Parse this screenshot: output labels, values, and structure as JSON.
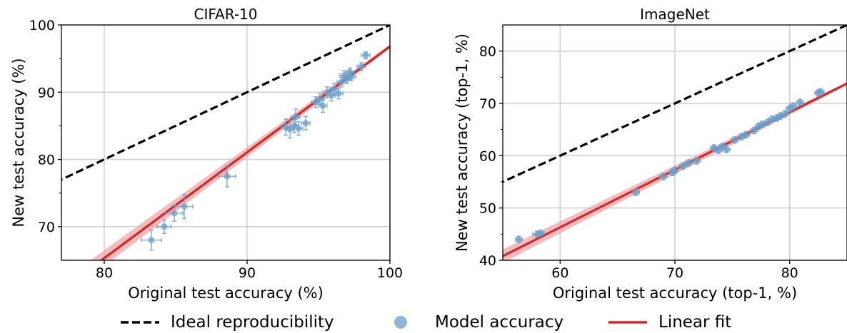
{
  "legend": {
    "ideal_label": "Ideal reproducibility",
    "model_label": "Model accuracy",
    "fit_label": "Linear fit"
  },
  "colors": {
    "ideal": "#000000",
    "points": "#6a9fcb",
    "fit": "#d62728",
    "fit_band": "#f0a0a0",
    "grid": "#d0d0d0"
  },
  "chart_data": [
    {
      "type": "scatter",
      "title": "CIFAR-10",
      "xlabel": "Original test accuracy (%)",
      "ylabel": "New test accuracy (%)",
      "xlim": [
        77,
        100
      ],
      "ylim": [
        65,
        100
      ],
      "xticks": [
        80,
        90,
        100
      ],
      "yticks": [
        70,
        80,
        90,
        100
      ],
      "grid": true,
      "legend_position": "bottom-center",
      "ideal_line": {
        "slope": 1,
        "intercept": 0
      },
      "linear_fit": {
        "x_range": [
          77,
          100
        ],
        "y_at_range": [
          60.6,
          96.8
        ]
      },
      "points": [
        {
          "x": 83.3,
          "y": 68.0,
          "xerr": 0.7,
          "yerr": 1.5
        },
        {
          "x": 84.2,
          "y": 70.0,
          "xerr": 0.5,
          "yerr": 1.0
        },
        {
          "x": 84.9,
          "y": 72.0,
          "xerr": 0.6,
          "yerr": 1.2
        },
        {
          "x": 85.6,
          "y": 73.0,
          "xerr": 0.6,
          "yerr": 1.8
        },
        {
          "x": 88.6,
          "y": 77.5,
          "xerr": 0.6,
          "yerr": 1.6
        },
        {
          "x": 92.7,
          "y": 84.8,
          "xerr": 0.3,
          "yerr": 1.2
        },
        {
          "x": 93.0,
          "y": 84.5,
          "xerr": 0.3,
          "yerr": 1.3
        },
        {
          "x": 93.3,
          "y": 85.0,
          "xerr": 0.3,
          "yerr": 1.0
        },
        {
          "x": 93.4,
          "y": 86.3,
          "xerr": 0.3,
          "yerr": 1.2
        },
        {
          "x": 93.6,
          "y": 84.6,
          "xerr": 0.3,
          "yerr": 1.0
        },
        {
          "x": 94.1,
          "y": 85.4,
          "xerr": 0.3,
          "yerr": 1.0
        },
        {
          "x": 94.8,
          "y": 88.5,
          "xerr": 0.3,
          "yerr": 0.8
        },
        {
          "x": 95.1,
          "y": 89.0,
          "xerr": 0.3,
          "yerr": 0.8
        },
        {
          "x": 95.3,
          "y": 88.0,
          "xerr": 0.3,
          "yerr": 1.0
        },
        {
          "x": 95.6,
          "y": 90.0,
          "xerr": 0.3,
          "yerr": 0.8
        },
        {
          "x": 95.9,
          "y": 89.5,
          "xerr": 0.3,
          "yerr": 0.8
        },
        {
          "x": 96.1,
          "y": 90.5,
          "xerr": 0.3,
          "yerr": 0.8
        },
        {
          "x": 96.4,
          "y": 89.8,
          "xerr": 0.3,
          "yerr": 0.8
        },
        {
          "x": 96.6,
          "y": 91.5,
          "xerr": 0.3,
          "yerr": 0.7
        },
        {
          "x": 96.8,
          "y": 92.5,
          "xerr": 0.3,
          "yerr": 0.7
        },
        {
          "x": 97.0,
          "y": 92.0,
          "xerr": 0.3,
          "yerr": 0.7
        },
        {
          "x": 97.2,
          "y": 93.0,
          "xerr": 0.3,
          "yerr": 0.6
        },
        {
          "x": 97.3,
          "y": 92.3,
          "xerr": 0.3,
          "yerr": 0.6
        },
        {
          "x": 98.0,
          "y": 93.8,
          "xerr": 0.3,
          "yerr": 0.6
        },
        {
          "x": 98.3,
          "y": 95.5,
          "xerr": 0.3,
          "yerr": 0.5
        }
      ]
    },
    {
      "type": "scatter",
      "title": "ImageNet",
      "xlabel": "Original test accuracy (top-1, %)",
      "ylabel": "New test accuracy (top-1, %)",
      "xlim": [
        55,
        85
      ],
      "ylim": [
        40,
        85
      ],
      "xticks": [
        60,
        70,
        80
      ],
      "yticks": [
        40,
        50,
        60,
        70,
        80
      ],
      "grid": true,
      "legend_position": "bottom-center",
      "ideal_line": {
        "slope": 1,
        "intercept": 0
      },
      "linear_fit": {
        "x_range": [
          55,
          85
        ],
        "y_at_range": [
          40.8,
          73.8
        ]
      },
      "points": [
        {
          "x": 56.4,
          "y": 44.0,
          "xerr": 0.3,
          "yerr": 0.6
        },
        {
          "x": 58.0,
          "y": 45.0,
          "xerr": 0.4,
          "yerr": 0.6
        },
        {
          "x": 58.3,
          "y": 45.2,
          "xerr": 0.3,
          "yerr": 0.5
        },
        {
          "x": 66.6,
          "y": 53.0,
          "xerr": 0.3,
          "yerr": 0.6
        },
        {
          "x": 69.0,
          "y": 56.0,
          "xerr": 0.3,
          "yerr": 0.6
        },
        {
          "x": 69.8,
          "y": 56.8,
          "xerr": 0.3,
          "yerr": 0.6
        },
        {
          "x": 70.0,
          "y": 57.2,
          "xerr": 0.3,
          "yerr": 0.6
        },
        {
          "x": 70.7,
          "y": 58.0,
          "xerr": 0.3,
          "yerr": 0.6
        },
        {
          "x": 71.2,
          "y": 58.6,
          "xerr": 0.3,
          "yerr": 0.6
        },
        {
          "x": 71.9,
          "y": 59.0,
          "xerr": 0.3,
          "yerr": 0.6
        },
        {
          "x": 73.4,
          "y": 61.5,
          "xerr": 0.3,
          "yerr": 0.6
        },
        {
          "x": 73.8,
          "y": 61.0,
          "xerr": 0.3,
          "yerr": 0.6
        },
        {
          "x": 74.2,
          "y": 61.8,
          "xerr": 0.3,
          "yerr": 0.6
        },
        {
          "x": 74.5,
          "y": 61.2,
          "xerr": 0.3,
          "yerr": 0.6
        },
        {
          "x": 75.2,
          "y": 63.0,
          "xerr": 0.3,
          "yerr": 0.6
        },
        {
          "x": 75.8,
          "y": 63.6,
          "xerr": 0.3,
          "yerr": 0.6
        },
        {
          "x": 76.2,
          "y": 64.0,
          "xerr": 0.3,
          "yerr": 0.6
        },
        {
          "x": 76.9,
          "y": 64.8,
          "xerr": 0.3,
          "yerr": 0.6
        },
        {
          "x": 77.3,
          "y": 65.6,
          "xerr": 0.3,
          "yerr": 0.6
        },
        {
          "x": 77.6,
          "y": 66.0,
          "xerr": 0.3,
          "yerr": 0.6
        },
        {
          "x": 78.1,
          "y": 66.4,
          "xerr": 0.3,
          "yerr": 0.6
        },
        {
          "x": 78.5,
          "y": 67.0,
          "xerr": 0.3,
          "yerr": 0.6
        },
        {
          "x": 78.9,
          "y": 67.2,
          "xerr": 0.3,
          "yerr": 0.6
        },
        {
          "x": 79.2,
          "y": 67.6,
          "xerr": 0.3,
          "yerr": 0.6
        },
        {
          "x": 79.6,
          "y": 68.0,
          "xerr": 0.3,
          "yerr": 0.6
        },
        {
          "x": 80.0,
          "y": 69.0,
          "xerr": 0.3,
          "yerr": 0.6
        },
        {
          "x": 80.3,
          "y": 69.5,
          "xerr": 0.3,
          "yerr": 0.6
        },
        {
          "x": 80.9,
          "y": 70.2,
          "xerr": 0.3,
          "yerr": 0.6
        },
        {
          "x": 82.5,
          "y": 72.0,
          "xerr": 0.3,
          "yerr": 0.6
        },
        {
          "x": 82.7,
          "y": 72.2,
          "xerr": 0.3,
          "yerr": 0.6
        }
      ]
    }
  ]
}
